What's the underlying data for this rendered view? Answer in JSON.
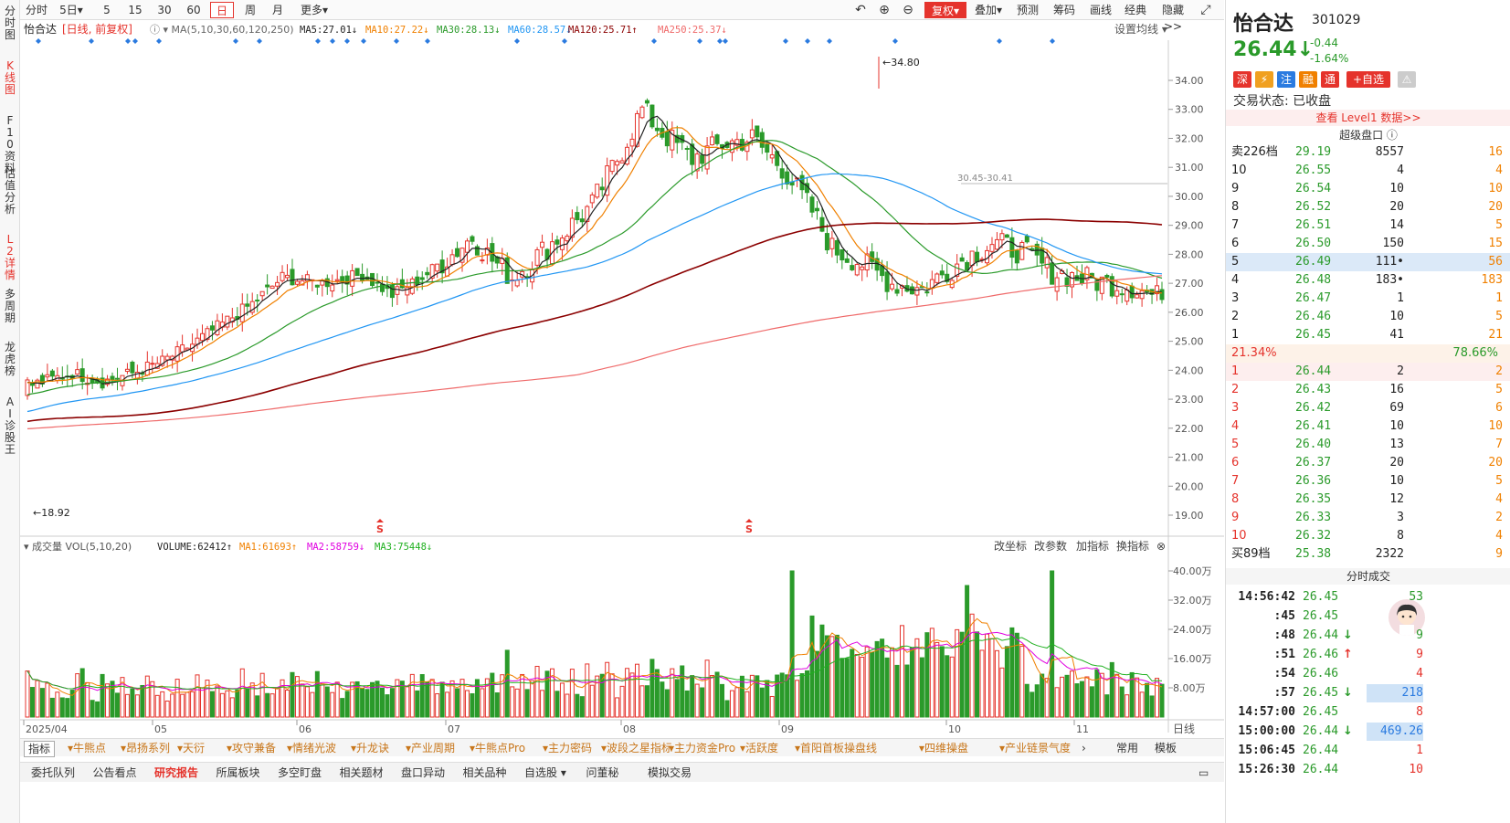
{
  "leftbar": [
    {
      "label": "分时图",
      "active": false
    },
    {
      "label": "K线图",
      "active": true
    },
    {
      "label": "F10资料",
      "active": false
    },
    {
      "label": "估值分析",
      "active": false
    },
    {
      "label": "L2详情",
      "active": true
    },
    {
      "label": "多周期",
      "active": false
    },
    {
      "label": "龙虎榜",
      "active": false
    },
    {
      "label": "AI诊股王",
      "active": false
    }
  ],
  "toolbar": {
    "left": [
      "分时",
      "5日▾",
      "5",
      "15",
      "30",
      "60",
      "日",
      "周",
      "月",
      "更多▾"
    ],
    "selected": "日",
    "right": [
      "↶",
      "⊕",
      "⊖",
      "复权▾",
      "叠加▾",
      "预测",
      "筹码",
      "画线",
      "经典",
      "隐藏>>",
      "⤢"
    ]
  },
  "chart": {
    "stock_name": "怡合达",
    "mode": "[日线, 前复权]",
    "ma_header": "MA(5,10,30,60,120,250)",
    "ma_values": [
      {
        "label": "MA5:27.01↓",
        "color": "#222222"
      },
      {
        "label": "MA10:27.22↓",
        "color": "#f08000"
      },
      {
        "label": "MA30:28.13↓",
        "color": "#2a9a2a"
      },
      {
        "label": "MA60:28.57↓",
        "color": "#2196f3"
      },
      {
        "label": "MA120:25.71↑",
        "color": "#8b0000"
      },
      {
        "label": "MA250:25.37↓",
        "color": "#ef6a6a"
      }
    ],
    "settings": "设置均线 ▾",
    "price_ticks": [
      "34.00",
      "33.00",
      "32.00",
      "31.00",
      "30.00",
      "29.00",
      "28.00",
      "27.00",
      "26.00",
      "25.00",
      "24.00",
      "23.00",
      "22.00",
      "21.00",
      "20.00",
      "19.00"
    ],
    "high_label": "34.80",
    "low_label": "18.92",
    "hline_label": "30.45-30.41",
    "vol_header": "成交量 VOL(5,10,20)",
    "vol_values": [
      {
        "label": "VOLUME:62412↑",
        "color": "#222222"
      },
      {
        "label": "MA1:61693↑",
        "color": "#f08000"
      },
      {
        "label": "MA2:58759↓",
        "color": "#e000e0"
      },
      {
        "label": "MA3:75448↓",
        "color": "#20b020"
      }
    ],
    "vol_tools": [
      "改坐标",
      "改参数",
      "加指标",
      "换指标"
    ],
    "vol_ticks": [
      "40.00万",
      "32.00万",
      "24.00万",
      "16.00万",
      "8.00万"
    ],
    "months": [
      "2025/04",
      "05",
      "06",
      "07",
      "08",
      "09",
      "10",
      "11"
    ],
    "period_label": "日线",
    "s_marker": "S"
  },
  "chart_data": {
    "type": "candlestick",
    "title": "怡合达 日线",
    "high": 34.8,
    "low": 18.92,
    "current": 26.44,
    "series": [
      {
        "name": "MA5",
        "last": 27.01
      },
      {
        "name": "MA10",
        "last": 27.22
      },
      {
        "name": "MA30",
        "last": 28.13
      },
      {
        "name": "MA60",
        "last": 28.57
      },
      {
        "name": "MA120",
        "last": 25.71
      },
      {
        "name": "MA250",
        "last": 25.37
      }
    ],
    "volume": {
      "VOLUME": 62412,
      "MA1": 61693,
      "MA2": 58759,
      "MA3": 75448
    },
    "months": [
      "2025/04",
      "05",
      "06",
      "07",
      "08",
      "09",
      "10",
      "11"
    ]
  },
  "indicator_bar": [
    "指标",
    "▾牛熊点",
    "▾昂扬系列",
    "▾天衍",
    "▾攻守兼备",
    "▾情绪光波",
    "▾升龙诀",
    "▾产业周期",
    "▾牛熊点Pro",
    "▾主力密码",
    "▾波段之星指标",
    "▾主力资金Pro",
    "▾活跃度",
    "▾首阳首板操盘线",
    "▾四维操盘",
    "▾产业链景气度",
    "›",
    "常用",
    "模板"
  ],
  "bottom_tabs": [
    "委托队列",
    "公告看点",
    "研究报告",
    "所属板块",
    "多空盯盘",
    "相关题材",
    "盘口异动",
    "相关品种",
    "自选股 ▾",
    "问董秘",
    "模拟交易"
  ],
  "bottom_active": "研究报告",
  "quote": {
    "name": "怡合达",
    "code": "301029",
    "price": "26.44↓",
    "change": "-0.44",
    "pct": "-1.64%",
    "badges": [
      {
        "t": "深",
        "c": "#e5332c"
      },
      {
        "t": "⚡",
        "c": "#f0a020"
      },
      {
        "t": "注",
        "c": "#2b7be0"
      },
      {
        "t": "融",
        "c": "#f08000"
      },
      {
        "t": "通",
        "c": "#e5332c"
      }
    ],
    "add_btn": "+自选",
    "status": "交易状态: 已收盘",
    "level1": "查看 Level1 数据>>",
    "super_title": "超级盘口 ⓘ",
    "sell_head": {
      "label": "卖226档",
      "price": "29.19",
      "vol": "8557",
      "n": "16"
    },
    "asks": [
      {
        "l": "10",
        "p": "26.55",
        "v": "4",
        "n": "4"
      },
      {
        "l": "9",
        "p": "26.54",
        "v": "10",
        "n": "10"
      },
      {
        "l": "8",
        "p": "26.52",
        "v": "20",
        "n": "20"
      },
      {
        "l": "7",
        "p": "26.51",
        "v": "14",
        "n": "5"
      },
      {
        "l": "6",
        "p": "26.50",
        "v": "150",
        "n": "15"
      },
      {
        "l": "5",
        "p": "26.49",
        "v": "111•",
        "n": "56"
      },
      {
        "l": "4",
        "p": "26.48",
        "v": "183•",
        "n": "183"
      },
      {
        "l": "3",
        "p": "26.47",
        "v": "1",
        "n": "1"
      },
      {
        "l": "2",
        "p": "26.46",
        "v": "10",
        "n": "5"
      },
      {
        "l": "1",
        "p": "26.45",
        "v": "41",
        "n": "21"
      }
    ],
    "ratio_left": "21.34%",
    "ratio_right": "78.66%",
    "bids": [
      {
        "l": "1",
        "p": "26.44",
        "v": "2",
        "n": "2"
      },
      {
        "l": "2",
        "p": "26.43",
        "v": "16",
        "n": "5"
      },
      {
        "l": "3",
        "p": "26.42",
        "v": "69",
        "n": "6"
      },
      {
        "l": "4",
        "p": "26.41",
        "v": "10",
        "n": "10"
      },
      {
        "l": "5",
        "p": "26.40",
        "v": "13",
        "n": "7"
      },
      {
        "l": "6",
        "p": "26.37",
        "v": "20",
        "n": "20"
      },
      {
        "l": "7",
        "p": "26.36",
        "v": "10",
        "n": "5"
      },
      {
        "l": "8",
        "p": "26.35",
        "v": "12",
        "n": "4"
      },
      {
        "l": "9",
        "p": "26.33",
        "v": "3",
        "n": "2"
      },
      {
        "l": "10",
        "p": "26.32",
        "v": "8",
        "n": "4"
      }
    ],
    "buy_head": {
      "label": "买89档",
      "price": "25.38",
      "vol": "2322",
      "n": "9"
    },
    "ticks_title": "分时成交",
    "ticks": [
      {
        "t": "14:56:42",
        "p": "26.45",
        "a": "",
        "v": "53",
        "c": "#2a9a2a"
      },
      {
        "t": ":45",
        "p": "26.45",
        "a": "",
        "v": "",
        "c": "#2a9a2a"
      },
      {
        "t": ":48",
        "p": "26.44",
        "a": "↓",
        "v": "9",
        "c": "#2a9a2a"
      },
      {
        "t": ":51",
        "p": "26.46",
        "a": "↑",
        "v": "9",
        "c": "#e5332c"
      },
      {
        "t": ":54",
        "p": "26.46",
        "a": "",
        "v": "4",
        "c": "#e5332c"
      },
      {
        "t": ":57",
        "p": "26.45",
        "a": "↓",
        "v": "218",
        "c": "#2b7be0"
      },
      {
        "t": "14:57:00",
        "p": "26.45",
        "a": "",
        "v": "8",
        "c": "#e5332c"
      },
      {
        "t": "15:00:00",
        "p": "26.44",
        "a": "↓",
        "v": "469.26",
        "c": "#2b7be0"
      },
      {
        "t": "15:06:45",
        "p": "26.44",
        "a": "",
        "v": "1",
        "c": "#e5332c"
      },
      {
        "t": "15:26:30",
        "p": "26.44",
        "a": "",
        "v": "10",
        "c": "#e5332c"
      }
    ]
  }
}
